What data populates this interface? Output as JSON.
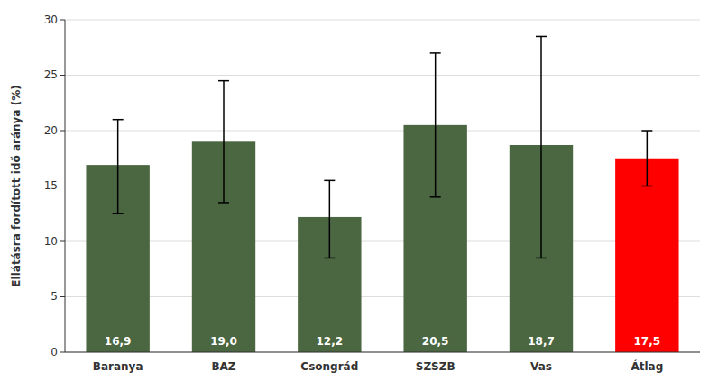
{
  "chart_data": {
    "type": "bar",
    "categories": [
      "Baranya",
      "BAZ",
      "Csongrád",
      "SZSZB",
      "Vas",
      "Átlag"
    ],
    "values": [
      16.9,
      19.0,
      12.2,
      20.5,
      18.7,
      17.5
    ],
    "value_labels": [
      "16,9",
      "19,0",
      "12,2",
      "20,5",
      "18,7",
      "17,5"
    ],
    "data_labels": true,
    "err_up": [
      4.1,
      5.5,
      3.3,
      6.5,
      9.8,
      2.5
    ],
    "err_down": [
      4.4,
      5.5,
      3.7,
      6.5,
      10.2,
      2.5
    ],
    "colors": [
      "#4a6741",
      "#4a6741",
      "#4a6741",
      "#4a6741",
      "#4a6741",
      "#ff0000"
    ],
    "ylabel": "Ellátásra fordított idő aránya (%)",
    "ylim": [
      0,
      30
    ],
    "yticks": [
      0,
      5,
      10,
      15,
      20,
      25,
      30
    ],
    "grid": true
  }
}
